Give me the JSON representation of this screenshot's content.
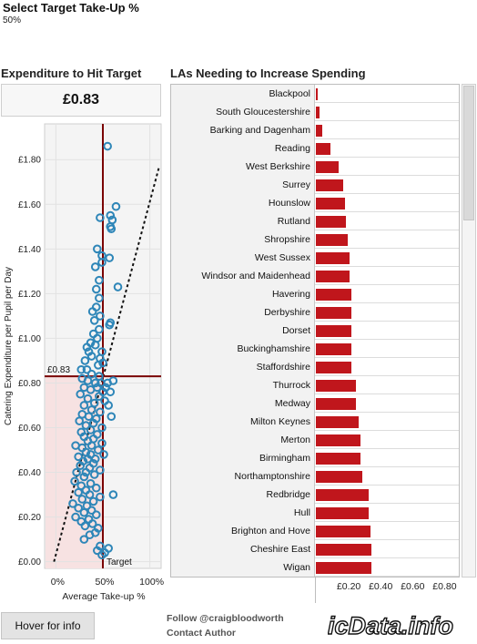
{
  "header": {
    "title": "Select Target Take-Up %",
    "value": "50%"
  },
  "kpi": {
    "title": "Expenditure to Hit Target",
    "value": "£0.83"
  },
  "scatter": {
    "ylabel": "Catering Expenditure per Pupil per Day",
    "xlabel": "Average Take-up %",
    "ref_line_label": "£0.83",
    "target_label": "Target",
    "xticks": [
      "0%",
      "50%",
      "100%"
    ],
    "yticks": [
      "£0.00",
      "£0.20",
      "£0.40",
      "£0.60",
      "£0.80",
      "£1.00",
      "£1.20",
      "£1.40",
      "£1.60",
      "£1.80"
    ],
    "colors": {
      "point": "#2e86b8",
      "ref": "#7a0000",
      "shade": "#f7e2e2",
      "trend": "#111111"
    }
  },
  "bars": {
    "title": "LAs Needing to Increase Spending",
    "xticks": [
      "£0.20",
      "£0.40",
      "£0.60",
      "£0.80"
    ],
    "color": "#c0161c"
  },
  "chart_data": [
    {
      "type": "scatter",
      "title": "",
      "xlabel": "Average Take-up %",
      "ylabel": "Catering Expenditure per Pupil per Day",
      "xlim": [
        -0.12,
        1.12
      ],
      "ylim": [
        -0.03,
        1.96
      ],
      "reference_lines": {
        "x_target": 0.5,
        "y_expenditure": 0.83
      },
      "points": [
        [
          0.55,
          1.86
        ],
        [
          0.64,
          1.59
        ],
        [
          0.58,
          1.55
        ],
        [
          0.6,
          1.53
        ],
        [
          0.47,
          1.54
        ],
        [
          0.58,
          1.5
        ],
        [
          0.59,
          1.49
        ],
        [
          0.49,
          1.37
        ],
        [
          0.57,
          1.36
        ],
        [
          0.44,
          1.4
        ],
        [
          0.49,
          1.34
        ],
        [
          0.42,
          1.32
        ],
        [
          0.46,
          1.26
        ],
        [
          0.43,
          1.22
        ],
        [
          0.66,
          1.23
        ],
        [
          0.46,
          1.18
        ],
        [
          0.43,
          1.14
        ],
        [
          0.39,
          1.12
        ],
        [
          0.47,
          1.1
        ],
        [
          0.41,
          1.08
        ],
        [
          0.58,
          1.07
        ],
        [
          0.57,
          1.06
        ],
        [
          0.46,
          1.04
        ],
        [
          0.4,
          1.02
        ],
        [
          0.44,
          1.0
        ],
        [
          0.37,
          0.98
        ],
        [
          0.42,
          0.97
        ],
        [
          0.49,
          0.94
        ],
        [
          0.33,
          0.96
        ],
        [
          0.35,
          0.94
        ],
        [
          0.38,
          0.92
        ],
        [
          0.47,
          0.91
        ],
        [
          0.31,
          0.9
        ],
        [
          0.5,
          0.89
        ],
        [
          0.45,
          0.88
        ],
        [
          0.27,
          0.86
        ],
        [
          0.33,
          0.86
        ],
        [
          0.38,
          0.84
        ],
        [
          0.46,
          0.83
        ],
        [
          0.28,
          0.82
        ],
        [
          0.34,
          0.81
        ],
        [
          0.42,
          0.8
        ],
        [
          0.48,
          0.8
        ],
        [
          0.55,
          0.8
        ],
        [
          0.61,
          0.81
        ],
        [
          0.53,
          0.78
        ],
        [
          0.44,
          0.78
        ],
        [
          0.3,
          0.78
        ],
        [
          0.37,
          0.77
        ],
        [
          0.5,
          0.76
        ],
        [
          0.58,
          0.76
        ],
        [
          0.26,
          0.75
        ],
        [
          0.46,
          0.74
        ],
        [
          0.34,
          0.73
        ],
        [
          0.52,
          0.72
        ],
        [
          0.41,
          0.71
        ],
        [
          0.3,
          0.7
        ],
        [
          0.56,
          0.7
        ],
        [
          0.38,
          0.68
        ],
        [
          0.47,
          0.67
        ],
        [
          0.28,
          0.66
        ],
        [
          0.35,
          0.65
        ],
        [
          0.43,
          0.64
        ],
        [
          0.59,
          0.65
        ],
        [
          0.25,
          0.63
        ],
        [
          0.4,
          0.62
        ],
        [
          0.32,
          0.61
        ],
        [
          0.49,
          0.6
        ],
        [
          0.37,
          0.59
        ],
        [
          0.27,
          0.58
        ],
        [
          0.44,
          0.57
        ],
        [
          0.3,
          0.56
        ],
        [
          0.4,
          0.55
        ],
        [
          0.34,
          0.54
        ],
        [
          0.49,
          0.53
        ],
        [
          0.21,
          0.52
        ],
        [
          0.38,
          0.52
        ],
        [
          0.28,
          0.51
        ],
        [
          0.45,
          0.5
        ],
        [
          0.32,
          0.49
        ],
        [
          0.37,
          0.48
        ],
        [
          0.51,
          0.48
        ],
        [
          0.24,
          0.47
        ],
        [
          0.42,
          0.46
        ],
        [
          0.34,
          0.46
        ],
        [
          0.29,
          0.45
        ],
        [
          0.4,
          0.44
        ],
        [
          0.26,
          0.43
        ],
        [
          0.36,
          0.42
        ],
        [
          0.47,
          0.41
        ],
        [
          0.22,
          0.4
        ],
        [
          0.32,
          0.4
        ],
        [
          0.41,
          0.39
        ],
        [
          0.3,
          0.38
        ],
        [
          0.2,
          0.36
        ],
        [
          0.37,
          0.35
        ],
        [
          0.27,
          0.34
        ],
        [
          0.43,
          0.33
        ],
        [
          0.32,
          0.32
        ],
        [
          0.24,
          0.31
        ],
        [
          0.36,
          0.3
        ],
        [
          0.61,
          0.3
        ],
        [
          0.47,
          0.29
        ],
        [
          0.28,
          0.28
        ],
        [
          0.4,
          0.27
        ],
        [
          0.18,
          0.26
        ],
        [
          0.33,
          0.25
        ],
        [
          0.24,
          0.24
        ],
        [
          0.38,
          0.23
        ],
        [
          0.3,
          0.22
        ],
        [
          0.43,
          0.21
        ],
        [
          0.21,
          0.2
        ],
        [
          0.35,
          0.19
        ],
        [
          0.27,
          0.18
        ],
        [
          0.39,
          0.17
        ],
        [
          0.31,
          0.16
        ],
        [
          0.45,
          0.15
        ],
        [
          0.42,
          0.13
        ],
        [
          0.36,
          0.12
        ],
        [
          0.47,
          0.07
        ],
        [
          0.56,
          0.06
        ],
        [
          0.52,
          0.04
        ],
        [
          0.44,
          0.05
        ],
        [
          0.49,
          0.03
        ],
        [
          0.3,
          0.1
        ]
      ],
      "trendline": [
        [
          -0.02,
          0.0
        ],
        [
          1.1,
          1.77
        ]
      ]
    },
    {
      "type": "bar",
      "title": "LAs Needing to Increase Spending",
      "categories": [
        "Blackpool",
        "South Gloucestershire",
        "Barking and Dagenham",
        "Reading",
        "West Berkshire",
        "Surrey",
        "Hounslow",
        "Rutland",
        "Shropshire",
        "West Sussex",
        "Windsor and Maidenhead",
        "Havering",
        "Derbyshire",
        "Dorset",
        "Buckinghamshire",
        "Staffordshire",
        "Thurrock",
        "Medway",
        "Milton Keynes",
        "Merton",
        "Birmingham",
        "Northamptonshire",
        "Redbridge",
        "Hull",
        "Brighton and Hove",
        "Cheshire East",
        "Wigan"
      ],
      "values": [
        0.01,
        0.025,
        0.04,
        0.09,
        0.14,
        0.17,
        0.18,
        0.19,
        0.2,
        0.21,
        0.21,
        0.22,
        0.22,
        0.22,
        0.22,
        0.22,
        0.25,
        0.25,
        0.27,
        0.28,
        0.28,
        0.29,
        0.33,
        0.33,
        0.34,
        0.35,
        0.35
      ],
      "xlim": [
        0.0,
        0.9
      ]
    }
  ],
  "footer": {
    "hover_label": "Hover for info",
    "follow_label": "Follow @craigbloodworth",
    "contact_label": "Contact Author",
    "logo_text": "icData.info"
  }
}
